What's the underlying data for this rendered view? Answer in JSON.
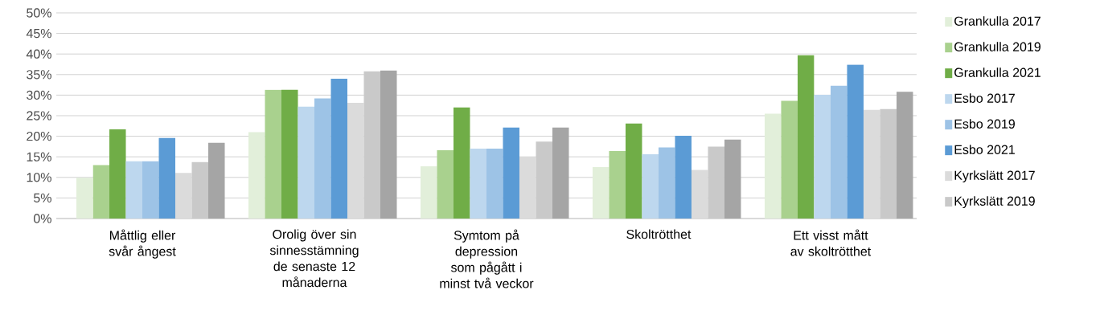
{
  "chart_data": {
    "type": "bar",
    "categories": [
      "Måttlig eller svår ångest",
      "Orolig över sin sinnesstämning de senaste 12 månaderna",
      "Symtom på depression som pågått i minst två veckor",
      "Skoltrötthet",
      "Ett visst mått av skoltrötthet"
    ],
    "series": [
      {
        "name": "Grankulla 2017",
        "color": "#e2efda",
        "values": [
          9.9,
          21.0,
          12.7,
          12.5,
          25.5
        ]
      },
      {
        "name": "Grankulla 2019",
        "color": "#a9d18e",
        "values": [
          13.0,
          31.3,
          16.6,
          16.4,
          28.6
        ]
      },
      {
        "name": "Grankulla 2021",
        "color": "#70ad47",
        "values": [
          21.7,
          31.3,
          27.0,
          23.1,
          39.7
        ]
      },
      {
        "name": "Esbo 2017",
        "color": "#bdd7ee",
        "values": [
          13.9,
          27.2,
          17.0,
          15.6,
          30.1
        ]
      },
      {
        "name": "Esbo 2019",
        "color": "#9dc3e6",
        "values": [
          13.9,
          29.2,
          17.0,
          17.3,
          32.3
        ]
      },
      {
        "name": "Esbo 2021",
        "color": "#5b9bd5",
        "values": [
          19.6,
          34.0,
          22.1,
          20.1,
          37.4
        ]
      },
      {
        "name": "Kyrkslätt 2017",
        "color": "#dbdbdb",
        "values": [
          11.1,
          28.1,
          15.0,
          11.8,
          26.4
        ]
      },
      {
        "name": "Kyrkslätt 2019",
        "color": "#c9c9c9",
        "values": [
          13.7,
          35.8,
          18.7,
          17.5,
          26.6
        ]
      },
      {
        "color": "#a5a5a5",
        "values": [
          18.4,
          36.0,
          22.1,
          19.2,
          30.8
        ]
      }
    ],
    "ylim": [
      0,
      50
    ],
    "yticks": [
      {
        "value": 0,
        "label": "0%"
      },
      {
        "value": 5,
        "label": "5%"
      },
      {
        "value": 10,
        "label": "10%"
      },
      {
        "value": 15,
        "label": "15%"
      },
      {
        "value": 20,
        "label": "20%"
      },
      {
        "value": 25,
        "label": "25%"
      },
      {
        "value": 30,
        "label": "30%"
      },
      {
        "value": 35,
        "label": "35%"
      },
      {
        "value": 40,
        "label": "40%"
      },
      {
        "value": 45,
        "label": "45%"
      },
      {
        "value": 50,
        "label": "50%"
      }
    ],
    "grid": "y",
    "legend": "right"
  }
}
